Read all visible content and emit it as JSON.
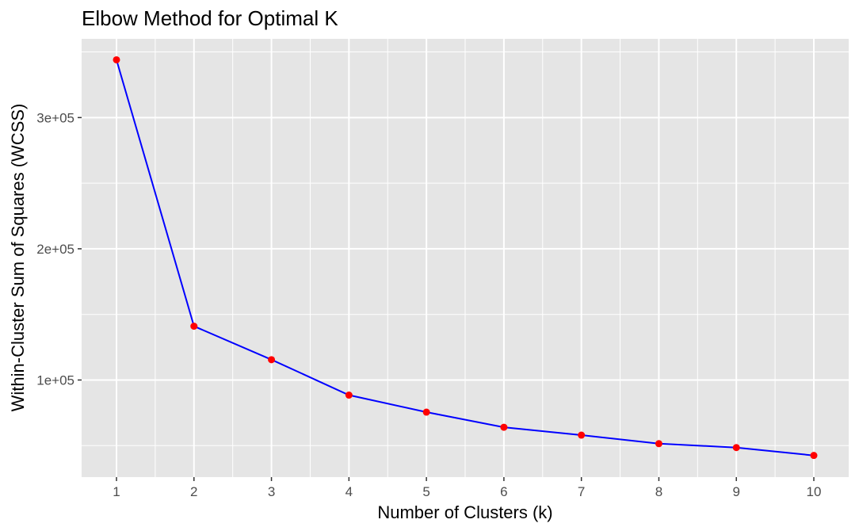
{
  "chart_data": {
    "type": "line",
    "title": "Elbow Method for Optimal K",
    "xlabel": "Number of Clusters (k)",
    "ylabel": "Within-Cluster Sum of Squares (WCSS)",
    "x": [
      1,
      2,
      3,
      4,
      5,
      6,
      7,
      8,
      9,
      10
    ],
    "series": [
      {
        "values": [
          344000,
          141000,
          115500,
          88500,
          75500,
          64000,
          58000,
          51500,
          48500,
          42500
        ]
      }
    ],
    "xlim": [
      0.55,
      10.45
    ],
    "ylim": [
      26000,
      360000
    ],
    "x_ticks": [
      1,
      2,
      3,
      4,
      5,
      6,
      7,
      8,
      9,
      10
    ],
    "x_tick_labels": [
      "1",
      "2",
      "3",
      "4",
      "5",
      "6",
      "7",
      "8",
      "9",
      "10"
    ],
    "y_ticks": [
      100000,
      200000,
      300000
    ],
    "y_tick_labels": [
      "1e+05",
      "2e+05",
      "3e+05"
    ],
    "grid": true,
    "colors": {
      "line": "#0000ff",
      "points": "#ff0000",
      "panel": "#e5e5e5",
      "grid": "#ffffff",
      "ticks": "#333333"
    }
  }
}
